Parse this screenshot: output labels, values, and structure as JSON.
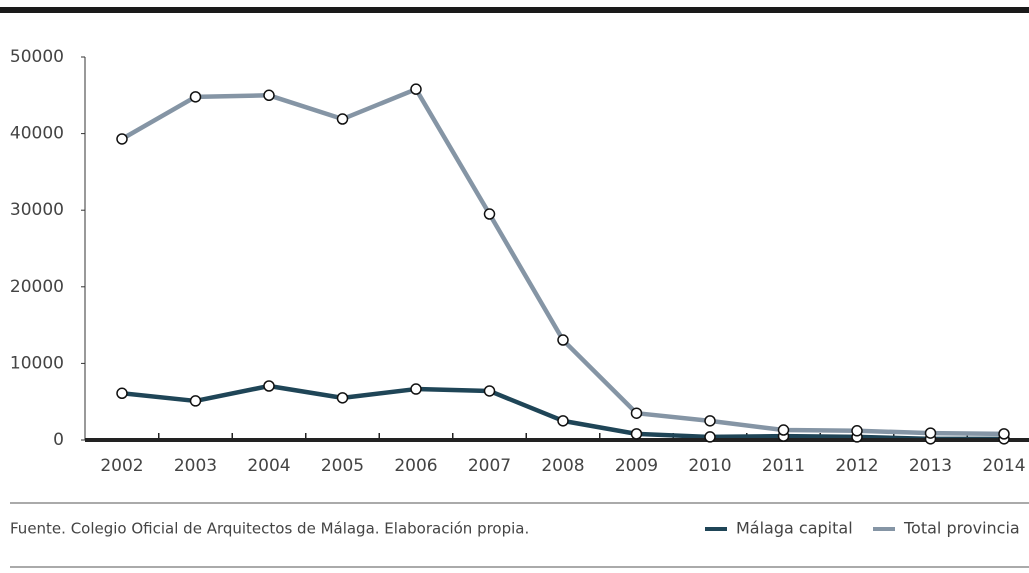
{
  "chart_data": {
    "type": "line",
    "categories": [
      "2002",
      "2003",
      "2004",
      "2005",
      "2006",
      "2007",
      "2008",
      "2009",
      "2010",
      "2011",
      "2012",
      "2013",
      "2014"
    ],
    "series": [
      {
        "name": "Málaga capital",
        "color": "#1f4557",
        "values": [
          6100,
          5100,
          7050,
          5500,
          6650,
          6400,
          2500,
          800,
          400,
          500,
          400,
          150,
          150
        ]
      },
      {
        "name": "Total provincia",
        "color": "#8595a5",
        "values": [
          39300,
          44800,
          45000,
          41900,
          45800,
          29500,
          13050,
          3500,
          2500,
          1300,
          1200,
          900,
          800
        ]
      }
    ],
    "ylim": [
      0,
      50000
    ],
    "yticks": [
      0,
      10000,
      20000,
      30000,
      40000,
      50000
    ],
    "source": "Fuente. Colegio Oficial de Arquitectos de Málaga. Elaboración propia."
  }
}
